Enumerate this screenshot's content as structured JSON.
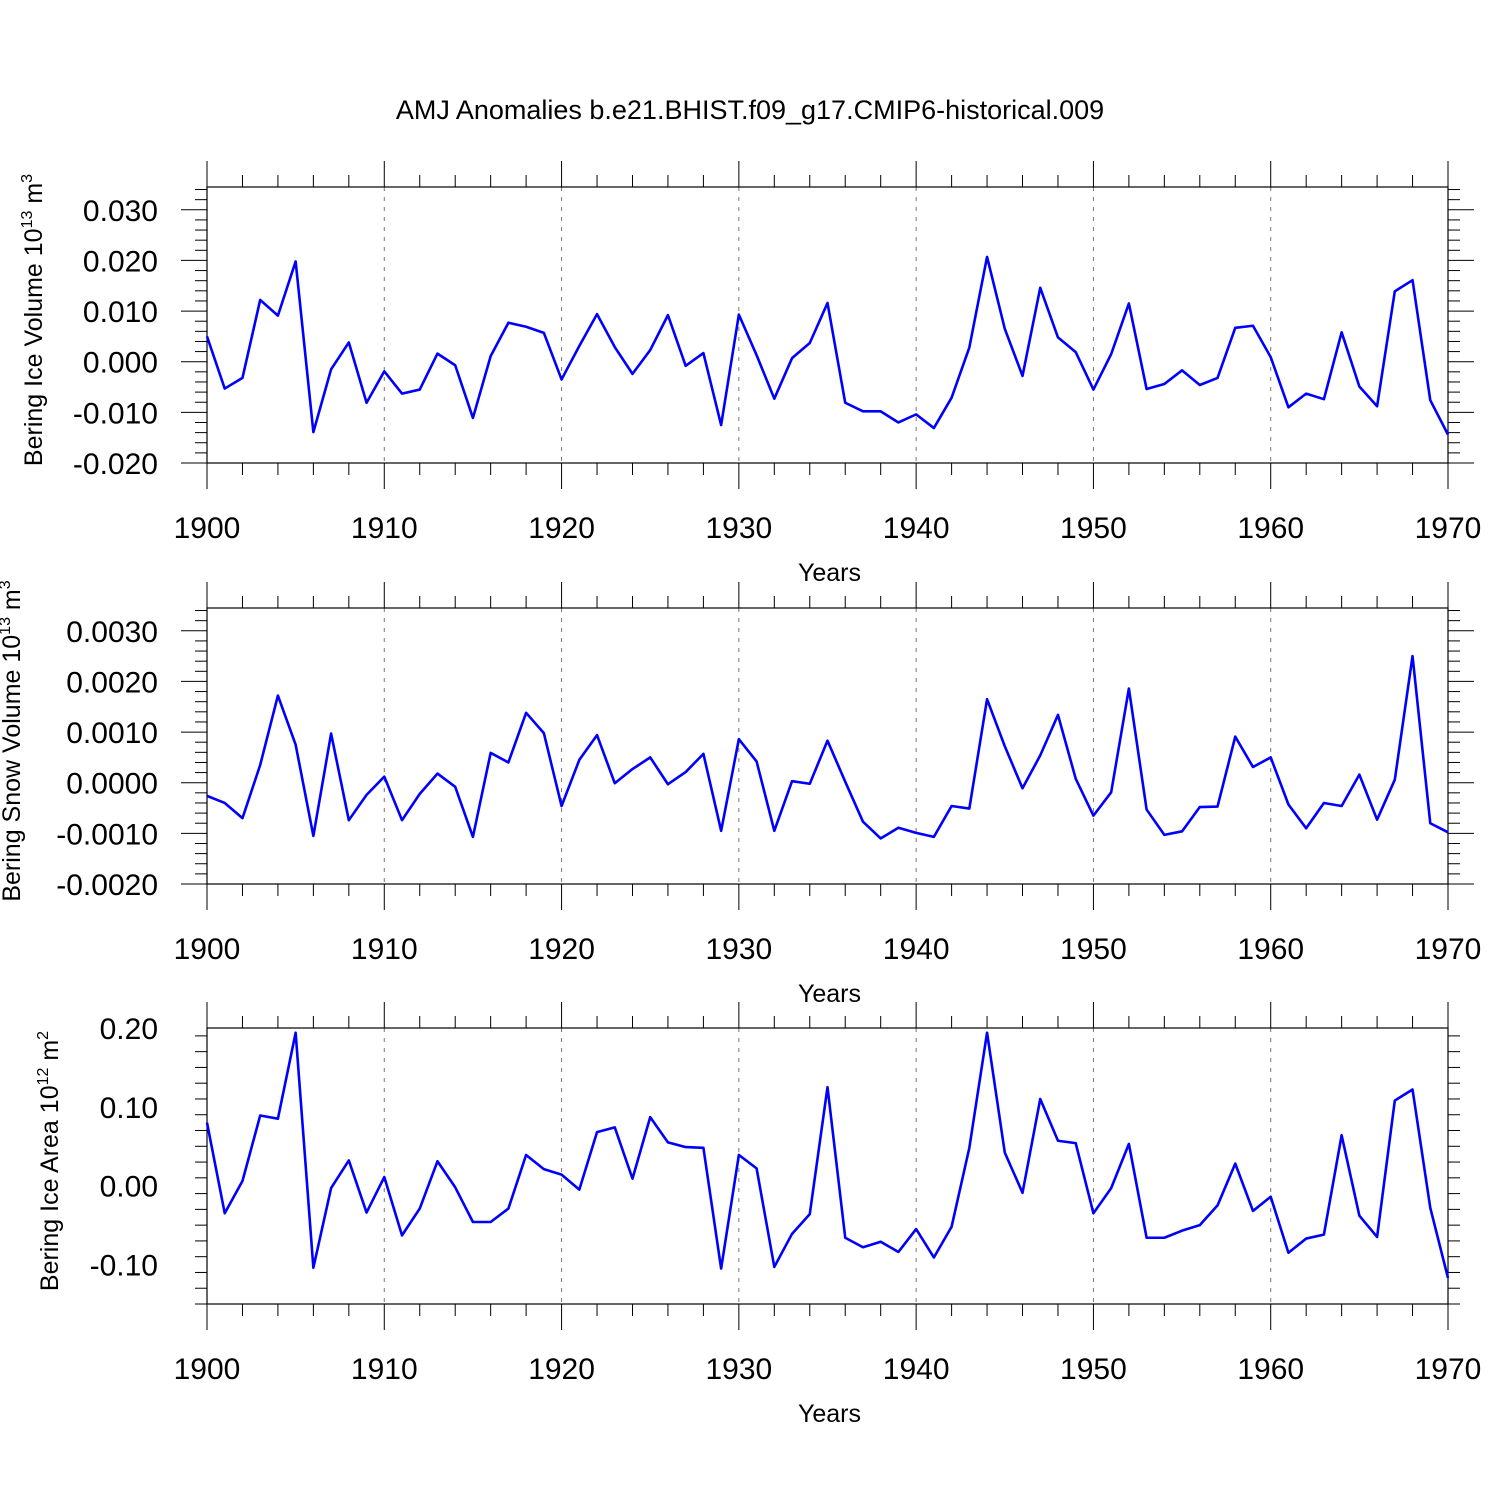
{
  "title": "AMJ Anomalies b.e21.BHIST.f09_g17.CMIP6-historical.009",
  "colors": {
    "line": "#0000ff",
    "axis": "#000000",
    "grid": "#777777",
    "background": "#ffffff"
  },
  "chart_data": [
    {
      "type": "line",
      "ylabel": "Bering Ice Volume 10",
      "ylabel_exp": "13",
      "ylabel_unit": " m",
      "ylabel_unit_exp": "3",
      "xlabel": "Years",
      "xlim": [
        1900,
        1970
      ],
      "ylim": [
        -0.02,
        0.0345
      ],
      "yticks": [
        -0.02,
        -0.01,
        0.0,
        0.01,
        0.02,
        0.03
      ],
      "ytick_labels": [
        "-0.020",
        "-0.010",
        "0.000",
        "0.010",
        "0.020",
        "0.030"
      ],
      "xticks": [
        1900,
        1910,
        1920,
        1930,
        1940,
        1950,
        1960,
        1970
      ],
      "xtick_labels": [
        "1900",
        "1910",
        "1920",
        "1930",
        "1940",
        "1950",
        "1960",
        "1970"
      ],
      "grid": "vertical dashed at decades",
      "series": [
        {
          "x_start": 1900,
          "values": [
            0.005,
            -0.0053,
            -0.0032,
            0.0122,
            0.0091,
            0.0198,
            -0.0139,
            -0.0015,
            0.0038,
            -0.0081,
            -0.0019,
            -0.0063,
            -0.0055,
            0.0016,
            -0.0007,
            -0.0111,
            0.0011,
            0.0077,
            0.0069,
            0.0057,
            -0.0035,
            0.0031,
            0.0094,
            0.0029,
            -0.0024,
            0.0023,
            0.0092,
            -0.0008,
            0.0017,
            -0.0125,
            0.0093,
            0.0013,
            -0.0073,
            0.0007,
            0.0037,
            0.0116,
            -0.0081,
            -0.0098,
            -0.0098,
            -0.012,
            -0.0104,
            -0.0131,
            -0.0071,
            0.0028,
            0.0207,
            0.0065,
            -0.0028,
            0.0146,
            0.0048,
            0.0019,
            -0.0055,
            0.0015,
            0.0115,
            -0.0054,
            -0.0044,
            -0.0017,
            -0.0046,
            -0.0032,
            0.0067,
            0.0071,
            0.0009,
            -0.009,
            -0.0063,
            -0.0074,
            0.0058,
            -0.0049,
            -0.0088,
            0.0139,
            0.0161,
            -0.0076,
            -0.0144
          ]
        }
      ]
    },
    {
      "type": "line",
      "ylabel": "Bering Snow Volume 10",
      "ylabel_exp": "13",
      "ylabel_unit": " m",
      "ylabel_unit_exp": "3",
      "xlabel": "Years",
      "xlim": [
        1900,
        1970
      ],
      "ylim": [
        -0.002,
        0.00345
      ],
      "yticks": [
        -0.002,
        -0.001,
        0.0,
        0.001,
        0.002,
        0.003
      ],
      "ytick_labels": [
        "-0.0020",
        "-0.0010",
        "0.0000",
        "0.0010",
        "0.0020",
        "0.0030"
      ],
      "xticks": [
        1900,
        1910,
        1920,
        1930,
        1940,
        1950,
        1960,
        1970
      ],
      "xtick_labels": [
        "1900",
        "1910",
        "1920",
        "1930",
        "1940",
        "1950",
        "1960",
        "1970"
      ],
      "grid": "vertical dashed at decades",
      "series": [
        {
          "x_start": 1900,
          "values": [
            -0.00026,
            -0.0004,
            -0.0007,
            0.00035,
            0.00172,
            0.00075,
            -0.00105,
            0.00097,
            -0.00074,
            -0.00024,
            0.00012,
            -0.00074,
            -0.00022,
            0.00018,
            -8e-05,
            -0.00107,
            0.00059,
            0.0004,
            0.00138,
            0.00098,
            -0.00046,
            0.00045,
            0.00094,
            -1e-05,
            0.00027,
            0.0005,
            -3e-05,
            0.00021,
            0.00057,
            -0.00095,
            0.00086,
            0.00042,
            -0.00095,
            3e-05,
            -2e-05,
            0.00083,
            2e-05,
            -0.00077,
            -0.0011,
            -0.00089,
            -0.00099,
            -0.00107,
            -0.00046,
            -0.00051,
            0.00165,
            0.00072,
            -0.00011,
            0.00054,
            0.00134,
            8e-05,
            -0.00065,
            -0.00019,
            0.00186,
            -0.00053,
            -0.00103,
            -0.00096,
            -0.00048,
            -0.00047,
            0.00091,
            0.00031,
            0.0005,
            -0.00043,
            -0.0009,
            -0.0004,
            -0.00046,
            0.00016,
            -0.00073,
            6e-05,
            0.0025,
            -0.0008,
            -0.00098
          ]
        }
      ]
    },
    {
      "type": "line",
      "ylabel": "Bering Ice Area 10",
      "ylabel_exp": "12",
      "ylabel_unit": " m",
      "ylabel_unit_exp": "2",
      "xlabel": "Years",
      "xlim": [
        1900,
        1970
      ],
      "ylim": [
        -0.15,
        0.2
      ],
      "yticks": [
        -0.1,
        0.0,
        0.1,
        0.2
      ],
      "ytick_labels": [
        "-0.10",
        "0.00",
        "0.10",
        "0.20"
      ],
      "xticks": [
        1900,
        1910,
        1920,
        1930,
        1940,
        1950,
        1960,
        1970
      ],
      "xtick_labels": [
        "1900",
        "1910",
        "1920",
        "1930",
        "1940",
        "1950",
        "1960",
        "1970"
      ],
      "grid": "vertical dashed at decades",
      "series": [
        {
          "x_start": 1900,
          "values": [
            0.08,
            -0.035,
            0.006,
            0.089,
            0.085,
            0.194,
            -0.104,
            -0.003,
            0.032,
            -0.034,
            0.011,
            -0.063,
            -0.029,
            0.031,
            -0.002,
            -0.046,
            -0.046,
            -0.029,
            0.039,
            0.021,
            0.014,
            -0.005,
            0.068,
            0.074,
            0.009,
            0.087,
            0.055,
            0.049,
            0.048,
            -0.105,
            0.039,
            0.022,
            -0.103,
            -0.061,
            -0.036,
            0.125,
            -0.066,
            -0.078,
            -0.071,
            -0.084,
            -0.055,
            -0.091,
            -0.052,
            0.048,
            0.194,
            0.042,
            -0.009,
            0.11,
            0.057,
            0.054,
            -0.035,
            -0.003,
            0.053,
            -0.066,
            -0.066,
            -0.057,
            -0.05,
            -0.025,
            0.028,
            -0.032,
            -0.014,
            -0.085,
            -0.067,
            -0.062,
            0.064,
            -0.038,
            -0.065,
            0.108,
            0.122,
            -0.028,
            -0.117
          ]
        }
      ]
    }
  ]
}
